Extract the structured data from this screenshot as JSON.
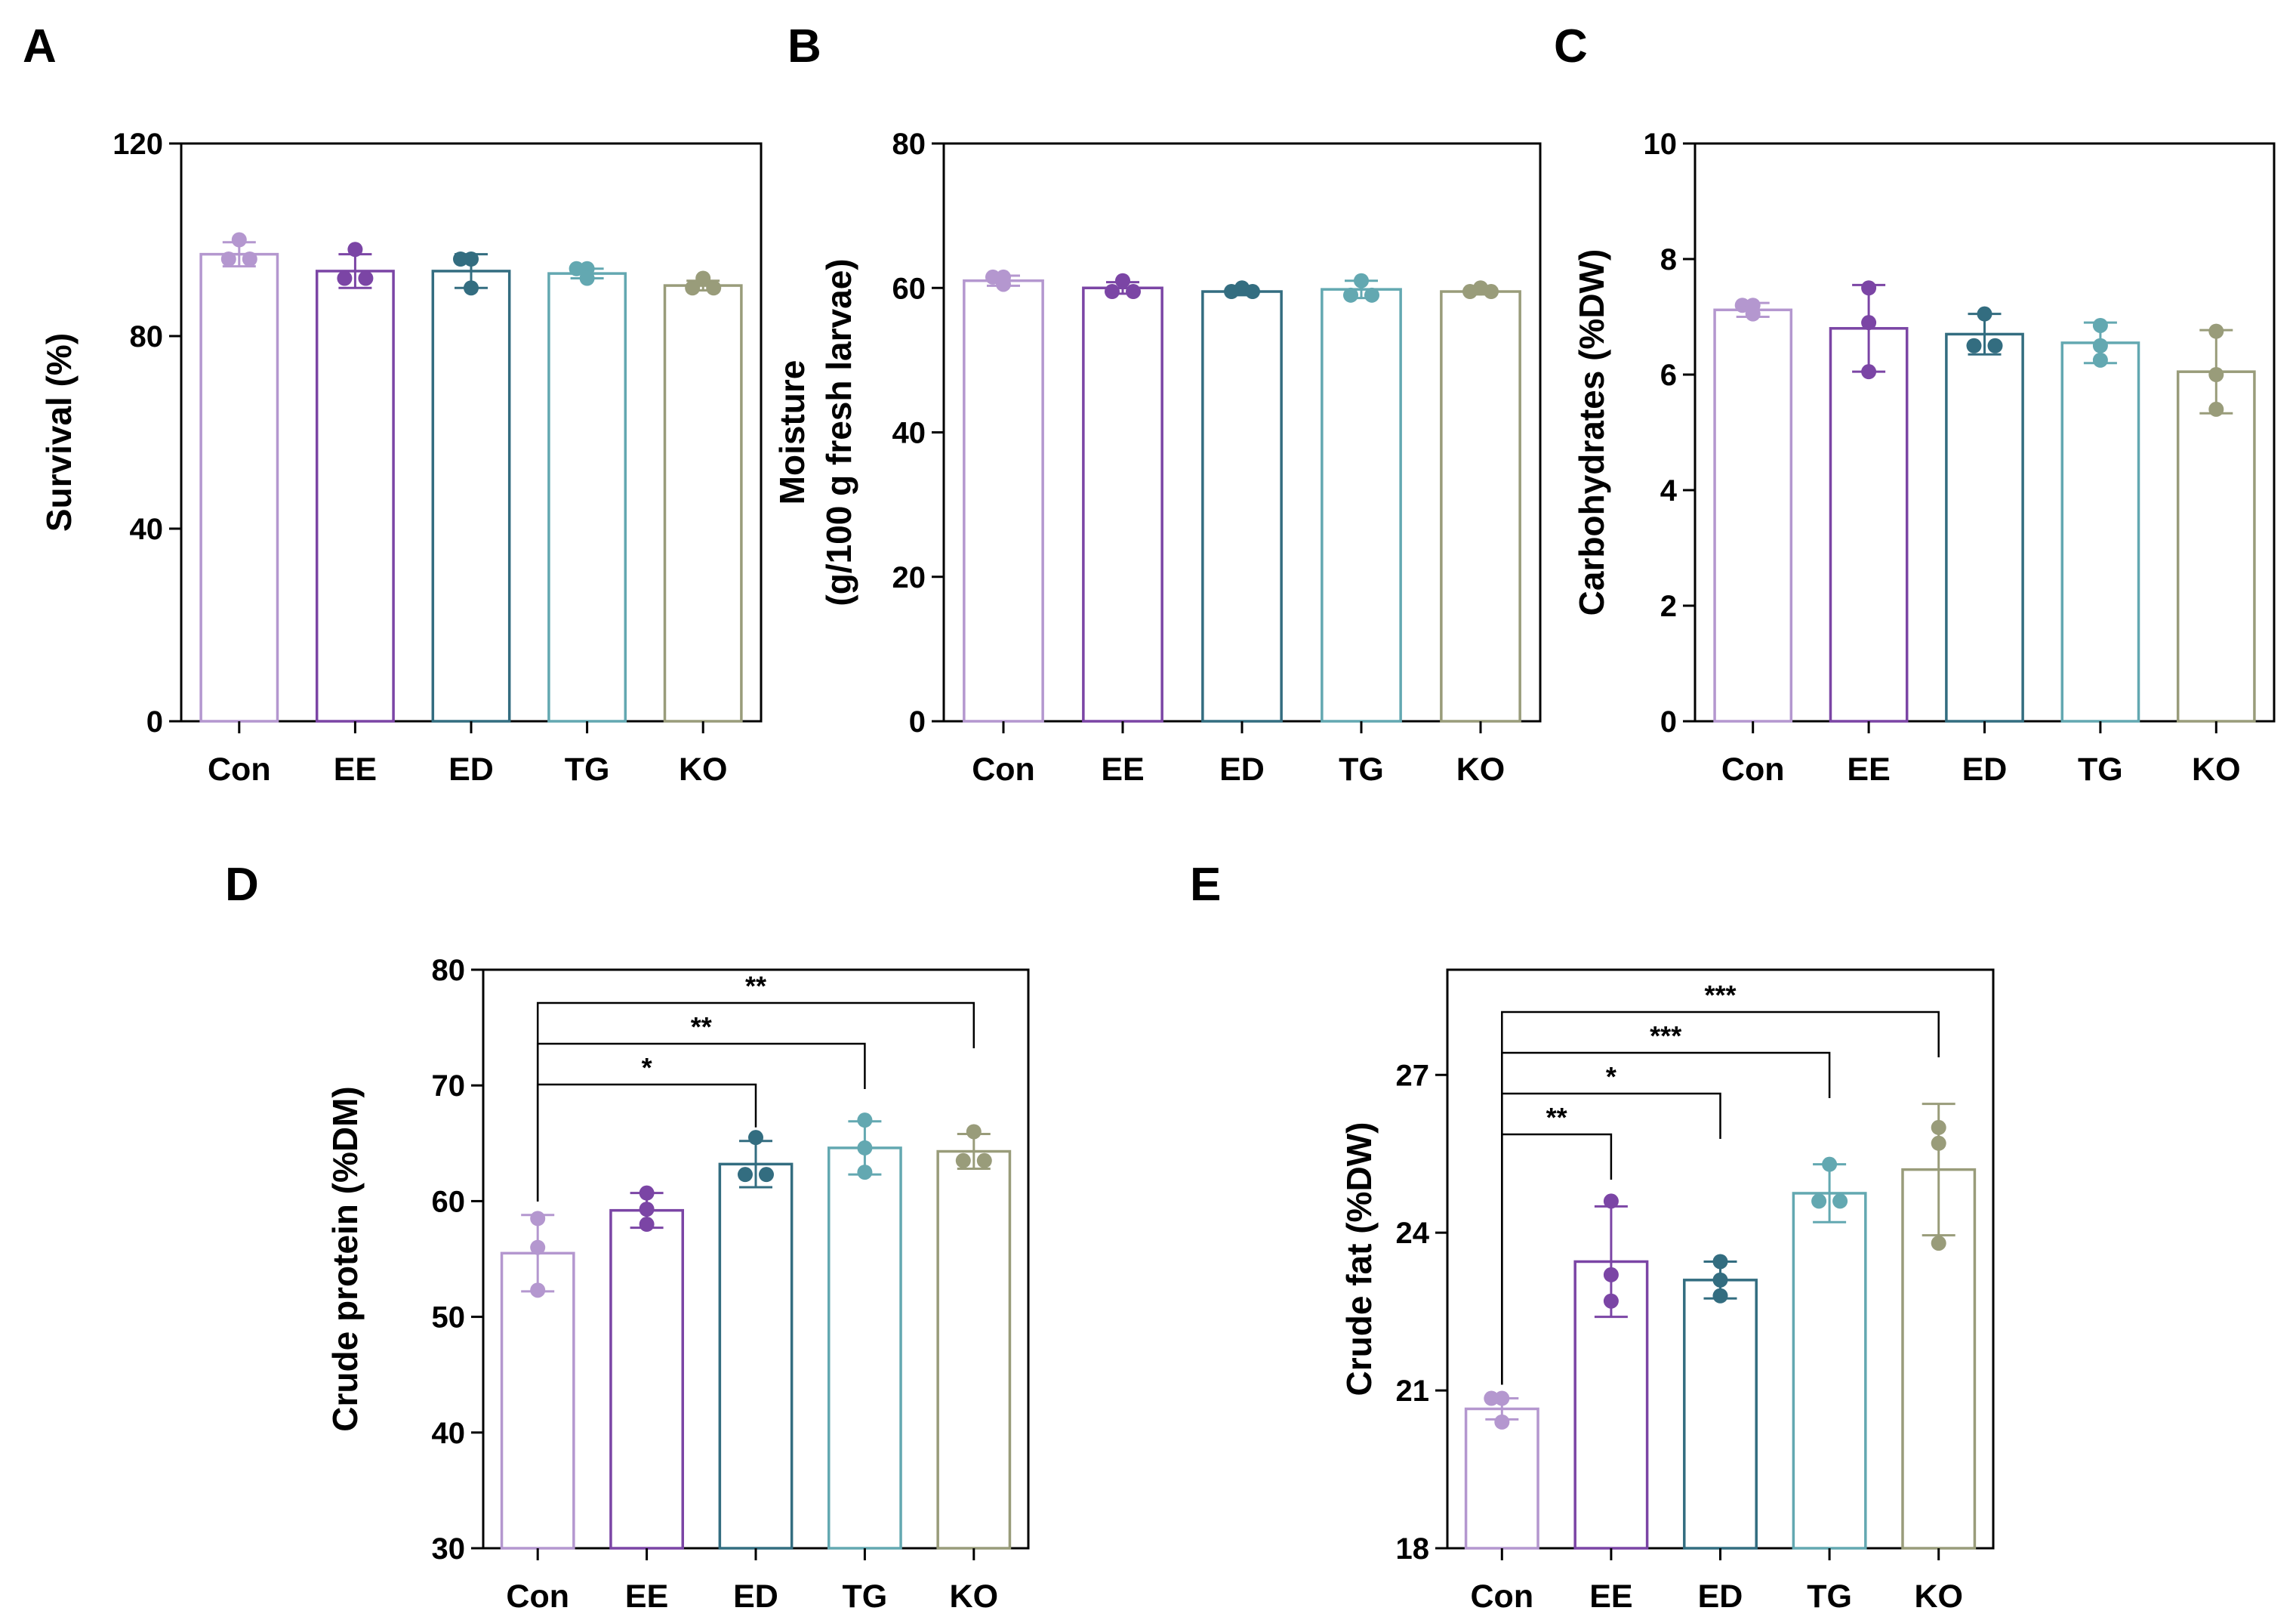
{
  "colors": {
    "Con": "#b497cf",
    "EE": "#7b45a5",
    "ED": "#336d80",
    "TG": "#63a8b1",
    "KO": "#999c7a"
  },
  "chart_data": [
    {
      "panel": "A",
      "type": "bar",
      "categories": [
        "Con",
        "EE",
        "ED",
        "TG",
        "KO"
      ],
      "values": [
        97.0,
        93.5,
        93.5,
        93.0,
        90.5
      ],
      "errors": [
        2.5,
        3.5,
        3.5,
        1.0,
        1.0
      ],
      "points": [
        [
          100,
          96,
          96
        ],
        [
          98,
          92,
          92
        ],
        [
          96,
          96,
          90
        ],
        [
          94,
          94,
          92
        ],
        [
          92,
          90,
          90
        ]
      ],
      "ylabel": [
        "Survival (%)"
      ],
      "ylim": [
        0,
        120
      ],
      "yticks": [
        0,
        40,
        80,
        120
      ],
      "comparisons": []
    },
    {
      "panel": "B",
      "type": "bar",
      "categories": [
        "Con",
        "EE",
        "ED",
        "TG",
        "KO"
      ],
      "values": [
        61.0,
        60.0,
        59.5,
        59.8,
        59.5
      ],
      "errors": [
        0.7,
        0.8,
        0.5,
        1.2,
        0.4
      ],
      "points": [
        [
          61.5,
          61.5,
          60.5
        ],
        [
          61,
          59.5,
          59.5
        ],
        [
          60,
          59.5,
          59.5
        ],
        [
          61,
          59,
          59
        ],
        [
          60,
          59.5,
          59.5
        ]
      ],
      "ylabel": [
        "Moisture",
        "(g/100 g fresh larvae)"
      ],
      "ylim": [
        0,
        80
      ],
      "yticks": [
        0,
        20,
        40,
        60,
        80
      ],
      "comparisons": []
    },
    {
      "panel": "C",
      "type": "bar",
      "categories": [
        "Con",
        "EE",
        "ED",
        "TG",
        "KO"
      ],
      "values": [
        7.12,
        6.8,
        6.7,
        6.55,
        6.05
      ],
      "errors": [
        0.12,
        0.75,
        0.35,
        0.35,
        0.72
      ],
      "points": [
        [
          7.2,
          7.2,
          7.05
        ],
        [
          7.5,
          6.9,
          6.05
        ],
        [
          7.05,
          6.5,
          6.5
        ],
        [
          6.85,
          6.5,
          6.25
        ],
        [
          6.75,
          6.0,
          5.4
        ]
      ],
      "ylabel": [
        "Carbohydrates (%DW)"
      ],
      "ylim": [
        0,
        10
      ],
      "yticks": [
        0,
        2,
        4,
        6,
        8,
        10
      ],
      "comparisons": []
    },
    {
      "panel": "D",
      "type": "bar",
      "categories": [
        "Con",
        "EE",
        "ED",
        "TG",
        "KO"
      ],
      "values": [
        55.5,
        59.2,
        63.2,
        64.6,
        64.3
      ],
      "errors": [
        3.3,
        1.5,
        2.0,
        2.3,
        1.5
      ],
      "points": [
        [
          58.5,
          56,
          52.3
        ],
        [
          60.7,
          59.3,
          58
        ],
        [
          65.5,
          62.3,
          62.3
        ],
        [
          67,
          64.6,
          62.5
        ],
        [
          66,
          63.5,
          63.5
        ]
      ],
      "ylabel": [
        "Crude protein (%DM)"
      ],
      "ylim": [
        30,
        80
      ],
      "yticks": [
        30,
        40,
        50,
        60,
        70,
        80
      ],
      "comparisons": [
        {
          "from": "Con",
          "to": "ED",
          "label": "*"
        },
        {
          "from": "Con",
          "to": "TG",
          "label": "**"
        },
        {
          "from": "Con",
          "to": "KO",
          "label": "**"
        }
      ]
    },
    {
      "panel": "E",
      "type": "bar",
      "categories": [
        "Con",
        "EE",
        "ED",
        "TG",
        "KO"
      ],
      "values": [
        20.65,
        23.45,
        23.1,
        24.75,
        25.2
      ],
      "errors": [
        0.2,
        1.05,
        0.35,
        0.55,
        1.25
      ],
      "points": [
        [
          20.85,
          20.85,
          20.4
        ],
        [
          24.6,
          23.2,
          22.7
        ],
        [
          23.45,
          23.1,
          22.8
        ],
        [
          25.3,
          24.6,
          24.6
        ],
        [
          26.0,
          25.7,
          23.8
        ]
      ],
      "ylabel": [
        "Crude fat (%DW)"
      ],
      "ylim": [
        18,
        29
      ],
      "yticks": [
        18,
        21,
        24,
        27
      ],
      "comparisons": [
        {
          "from": "Con",
          "to": "EE",
          "label": "**"
        },
        {
          "from": "Con",
          "to": "ED",
          "label": "*"
        },
        {
          "from": "Con",
          "to": "TG",
          "label": "***"
        },
        {
          "from": "Con",
          "to": "KO",
          "label": "***"
        }
      ]
    }
  ]
}
